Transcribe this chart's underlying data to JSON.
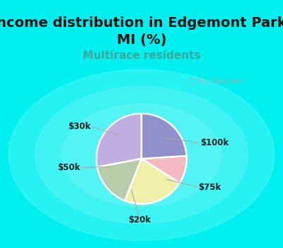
{
  "title": "Income distribution in Edgemont Park,\nMI (%)",
  "subtitle": "Multirace residents",
  "labels": [
    "$100k",
    "$75k",
    "$20k",
    "$50k",
    "$30k"
  ],
  "sizes": [
    28,
    16,
    22,
    10,
    24
  ],
  "colors": [
    "#c0aee0",
    "#b8ccaa",
    "#f0f0a8",
    "#f4b8c0",
    "#9090cc"
  ],
  "background_cyan": "#00f0f0",
  "background_chart": "#e0f0e8",
  "watermark": "City-Data.com",
  "title_fontsize": 14,
  "subtitle_fontsize": 11,
  "subtitle_color": "#3aaa9a",
  "startangle": 90,
  "title_color": "#111111"
}
